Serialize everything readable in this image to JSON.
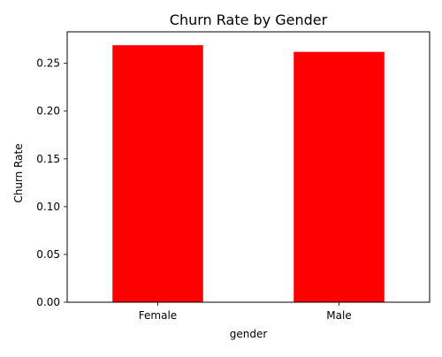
{
  "chart_data": {
    "type": "bar",
    "title": "Churn Rate by Gender",
    "xlabel": "gender",
    "ylabel": "Churn Rate",
    "categories": [
      "Female",
      "Male"
    ],
    "values": [
      0.269,
      0.262
    ],
    "ylim": [
      0,
      0.283
    ],
    "yticks": [
      0.0,
      0.05,
      0.1,
      0.15,
      0.2,
      0.25
    ],
    "ytick_labels": [
      "0.00",
      "0.05",
      "0.10",
      "0.15",
      "0.20",
      "0.25"
    ],
    "grid": false,
    "legend": "none",
    "bar_color": "#ff0000"
  }
}
